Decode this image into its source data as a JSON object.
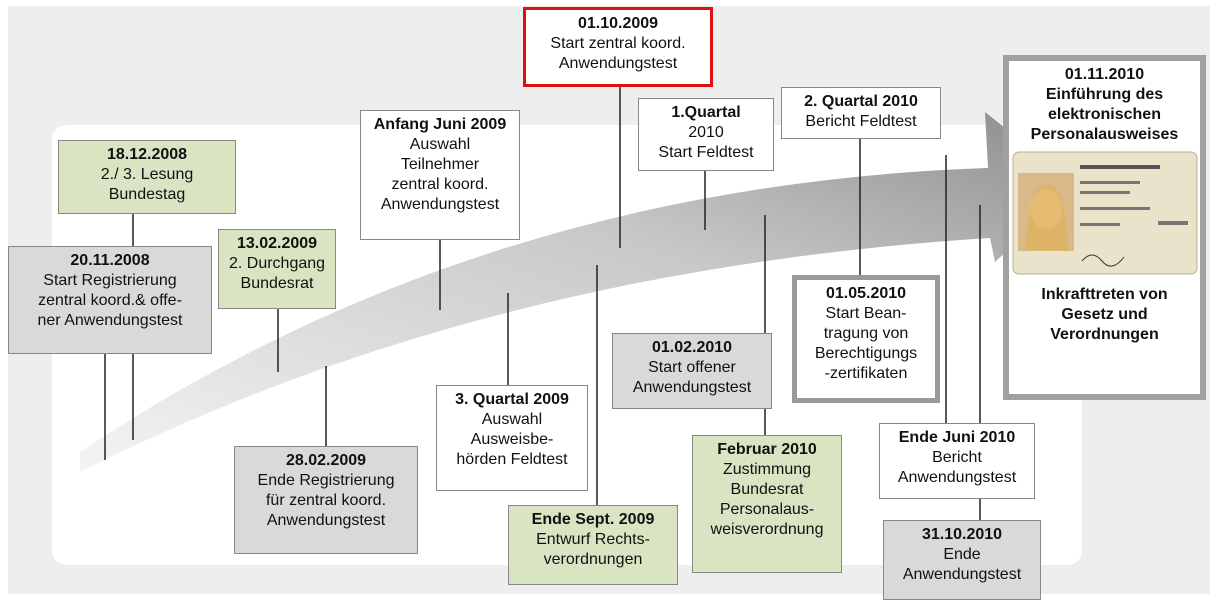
{
  "nodes": [
    {
      "date": "18.12.2008",
      "lines": [
        "2./ 3. Lesung",
        "Bundestag"
      ]
    },
    {
      "date": "20.11.2008",
      "lines": [
        "Start Registrierung",
        "zentral koord.& offe-",
        "ner Anwendungstest"
      ]
    },
    {
      "date": "13.02.2009",
      "lines": [
        "2. Durchgang",
        "Bundesrat"
      ]
    },
    {
      "date": "28.02.2009",
      "lines": [
        "Ende Registrierung",
        "für zentral koord.",
        "Anwendungstest"
      ]
    },
    {
      "date": "Anfang Juni 2009",
      "lines": [
        "Auswahl",
        "Teilnehmer",
        "zentral koord.",
        "Anwendungstest"
      ]
    },
    {
      "date": "3. Quartal 2009",
      "lines": [
        "Auswahl",
        "Ausweisbe-",
        "hörden Feldtest"
      ]
    },
    {
      "date": "01.10.2009",
      "lines": [
        "Start zentral koord.",
        "Anwendungstest"
      ]
    },
    {
      "date": "Ende Sept. 2009",
      "lines": [
        "Entwurf Rechts-",
        "verordnungen"
      ]
    },
    {
      "date": "1.Quartal",
      "lines": [
        "2010",
        "Start Feldtest"
      ]
    },
    {
      "date": "01.02.2010",
      "lines": [
        "Start offener",
        "Anwendungstest"
      ]
    },
    {
      "date": "Februar 2010",
      "lines": [
        "Zustimmung",
        "Bundesrat",
        "Personalaus-",
        "weisverordnung"
      ]
    },
    {
      "date": "2. Quartal 2010",
      "lines": [
        "Bericht Feldtest"
      ]
    },
    {
      "date": "01.05.2010",
      "lines": [
        "Start Bean-",
        "tragung von",
        "Berechtigungs",
        "-zertifikaten"
      ]
    },
    {
      "date": "Ende Juni 2010",
      "lines": [
        "Bericht",
        "Anwendungstest"
      ]
    },
    {
      "date": "31.10.2010",
      "lines": [
        "Ende",
        "Anwendungstest"
      ]
    },
    {
      "date": "01.11.2010",
      "lines": [
        "Einführung des",
        "elektronischen",
        "Personalausweises"
      ],
      "footer": [
        "Inkrafttreten von",
        "Gesetz und",
        "Verordnungen"
      ]
    }
  ]
}
